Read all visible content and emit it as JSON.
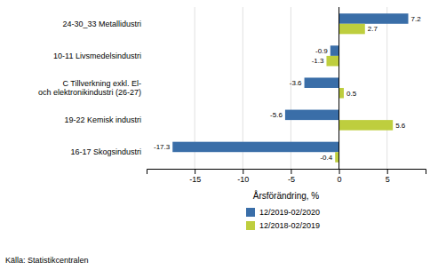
{
  "chart_data": {
    "type": "bar",
    "orientation": "horizontal",
    "categories": [
      "16-17 Skogsindustri",
      "19-22 Kemisk industri",
      "C Tillverkning exkl. El-\noch elektronikindustri  (26-27)",
      "10-11 Livsmedelsindustri",
      "24-30_33 Metallidustri"
    ],
    "series": [
      {
        "name": "12/2019-02/2020",
        "color": "#3A6EA8",
        "values": [
          -17.3,
          -5.6,
          -3.6,
          -0.9,
          7.2
        ]
      },
      {
        "name": "12/2018-02/2019",
        "color": "#BECE3E",
        "values": [
          -0.4,
          5.6,
          0.5,
          -1.3,
          2.7
        ]
      }
    ],
    "xlabel": "Årsförändring, %",
    "xlim": [
      -20,
      9
    ],
    "xticks": [
      -15,
      -10,
      -5,
      0,
      5
    ],
    "grid": true,
    "data_labels": true,
    "legend": "bottom",
    "source": "Källa: Statistikcentralen"
  }
}
